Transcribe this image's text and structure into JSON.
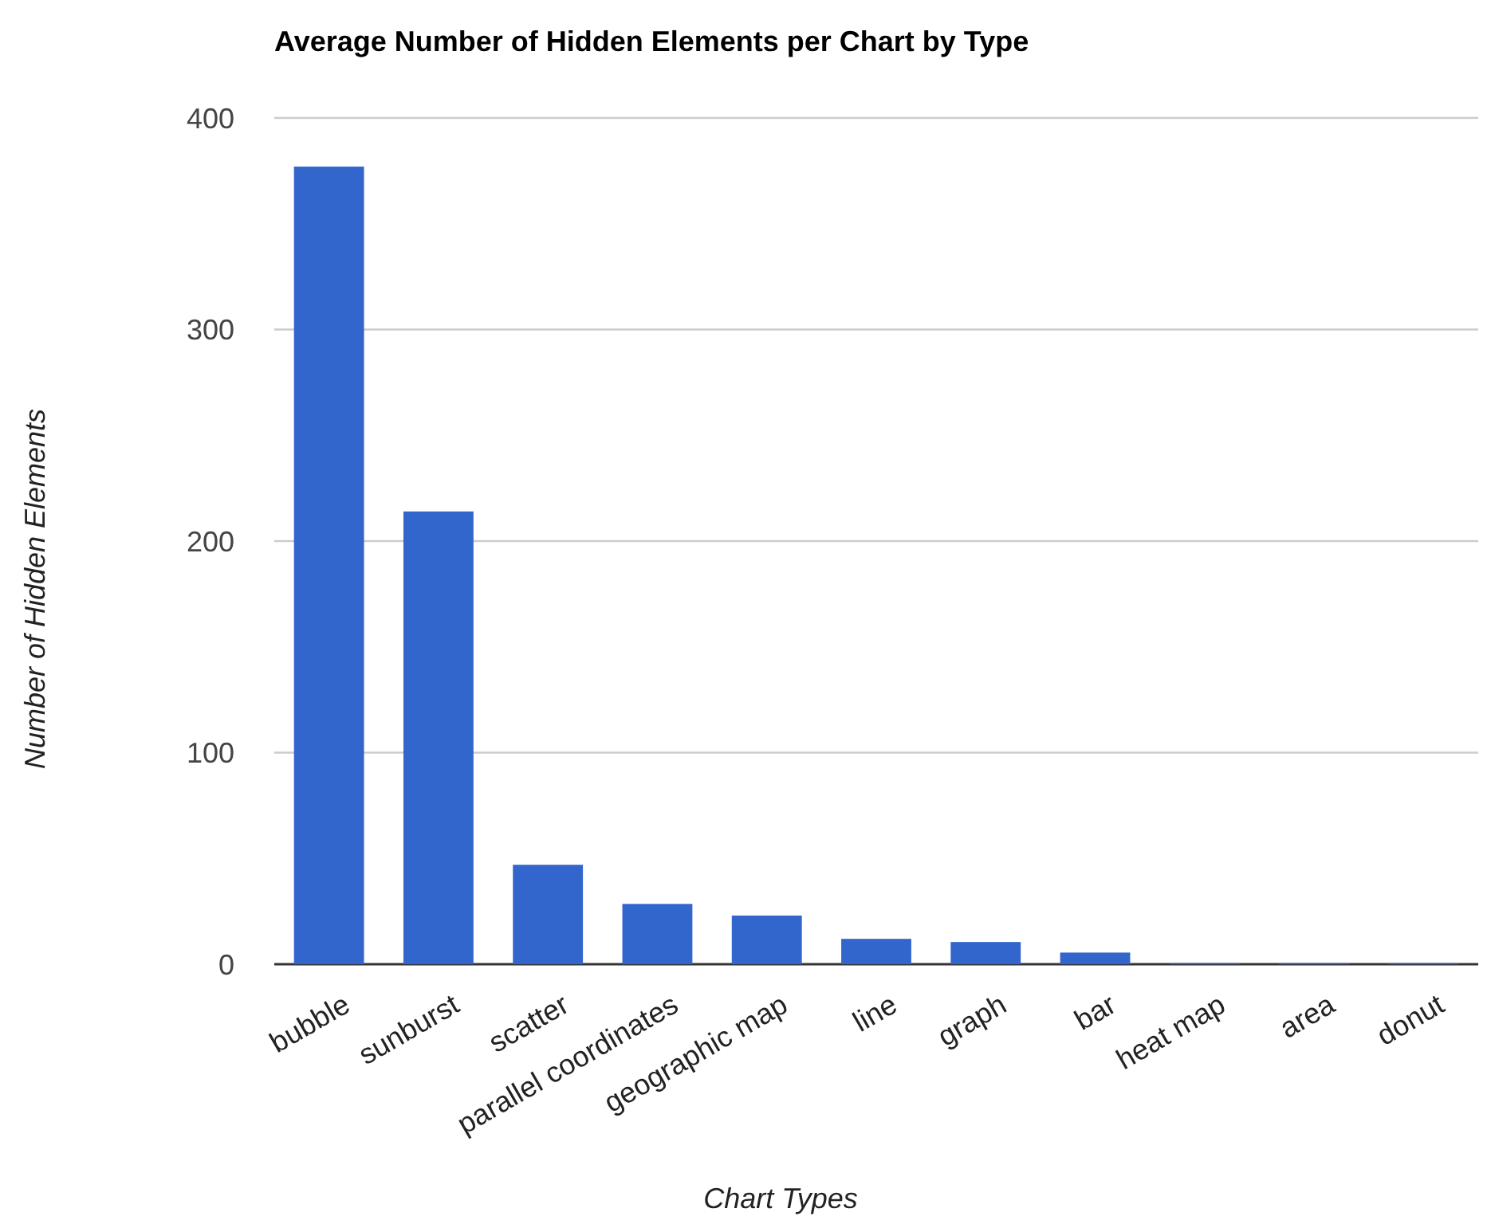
{
  "chart_data": {
    "type": "bar",
    "title": "Average Number of Hidden Elements per Chart by Type",
    "xlabel": "Chart Types",
    "ylabel": "Number of Hidden Elements",
    "categories": [
      "bubble",
      "sunburst",
      "scatter",
      "parallel coordinates",
      "geographic map",
      "line",
      "graph",
      "bar",
      "heat map",
      "area",
      "donut"
    ],
    "values": [
      377,
      214,
      47,
      28.5,
      23,
      12,
      10.5,
      5.5,
      0.5,
      0.5,
      0.5
    ],
    "color": "#3366cc",
    "ylim": [
      0,
      400
    ],
    "yticks": [
      0,
      100,
      200,
      300,
      400
    ],
    "grid": "y"
  }
}
